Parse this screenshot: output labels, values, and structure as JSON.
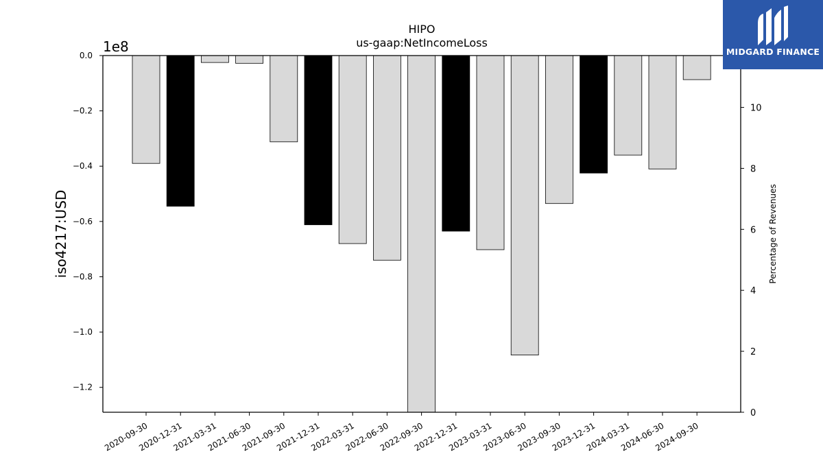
{
  "brand": {
    "name": "MIDGARD FINANCE",
    "color": "#2b58aa"
  },
  "chart_data": {
    "type": "bar",
    "title": "HIPO",
    "subtitle": "us-gaap:NetIncomeLoss",
    "ylabel": "iso4217:USD",
    "y_scale_label": "1e8",
    "y2label": "Percentage of Revenues",
    "ylim": [
      -1.29,
      0.0
    ],
    "y2lim": [
      0,
      11.7
    ],
    "yticks": [
      "0.0",
      "−0.2",
      "−0.4",
      "−0.6",
      "−0.8",
      "−1.0",
      "−1.2"
    ],
    "y2ticks": [
      "0",
      "2",
      "4",
      "6",
      "8",
      "10"
    ],
    "categories": [
      "2020-09-30",
      "2020-12-31",
      "2021-03-31",
      "2021-06-30",
      "2021-09-30",
      "2021-12-31",
      "2022-03-31",
      "2022-06-30",
      "2022-09-30",
      "2022-12-31",
      "2023-03-31",
      "2023-06-30",
      "2023-09-30",
      "2023-12-31",
      "2024-03-31",
      "2024-06-30",
      "2024-09-30"
    ],
    "values": [
      -0.39,
      -0.545,
      -0.025,
      -0.028,
      -0.312,
      -0.612,
      -0.68,
      -0.74,
      -1.29,
      -0.635,
      -0.702,
      -1.083,
      -0.535,
      -0.425,
      -0.36,
      -0.41,
      -0.087
    ],
    "highlight": [
      false,
      true,
      false,
      false,
      false,
      true,
      false,
      false,
      false,
      true,
      false,
      false,
      false,
      true,
      false,
      false,
      false
    ],
    "colors": {
      "bar": "#d9d9d9",
      "highlight": "#000000",
      "edge": "#000000"
    },
    "grid": false
  }
}
